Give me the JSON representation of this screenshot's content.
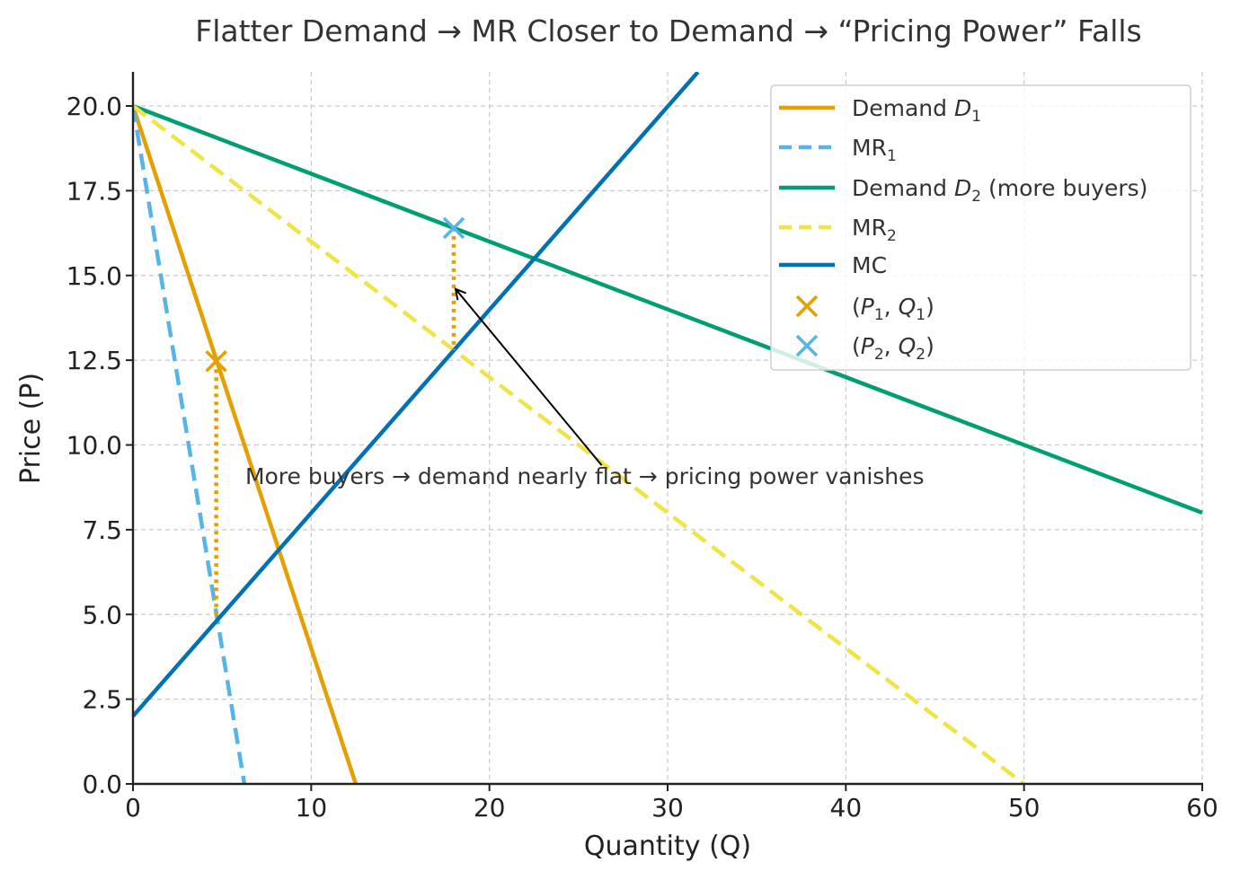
{
  "chart_data": {
    "type": "line",
    "title": "Flatter Demand → MR Closer to Demand → “Pricing Power” Falls",
    "xlabel": "Quantity (Q)",
    "ylabel": "Price (P)",
    "xlim": [
      0,
      60
    ],
    "ylim": [
      0,
      21
    ],
    "xticks": [
      0,
      10,
      20,
      30,
      40,
      50,
      60
    ],
    "xtick_labels": [
      "0",
      "10",
      "20",
      "30",
      "40",
      "50",
      "60"
    ],
    "yticks": [
      0,
      2.5,
      5,
      7.5,
      10,
      12.5,
      15,
      17.5,
      20
    ],
    "ytick_labels": [
      "0.0",
      "2.5",
      "5.0",
      "7.5",
      "10.0",
      "12.5",
      "15.0",
      "17.5",
      "20.0"
    ],
    "grid": true,
    "legend_position": "top-right",
    "series": [
      {
        "name": "Demand D1",
        "label_main": "Demand ",
        "label_var": "D",
        "label_sub": "1",
        "label_tail": "",
        "x": [
          0,
          12.5
        ],
        "y": [
          20,
          0
        ],
        "color": "#E69F00",
        "style": "solid"
      },
      {
        "name": "MR1",
        "label_main": "MR",
        "label_var": "",
        "label_sub": "1",
        "label_tail": "",
        "x": [
          0,
          6.25
        ],
        "y": [
          20,
          0
        ],
        "color": "#56B4E9",
        "style": "dashed"
      },
      {
        "name": "Demand D2 (more buyers)",
        "label_main": "Demand ",
        "label_var": "D",
        "label_sub": "2",
        "label_tail": " (more buyers)",
        "x": [
          0,
          60
        ],
        "y": [
          20,
          8
        ],
        "color": "#009E73",
        "style": "solid"
      },
      {
        "name": "MR2",
        "label_main": "MR",
        "label_var": "",
        "label_sub": "2",
        "label_tail": "",
        "x": [
          0,
          50
        ],
        "y": [
          20,
          0
        ],
        "color": "#F0E442",
        "style": "dashed"
      },
      {
        "name": "MC",
        "label_main": "MC",
        "label_var": "",
        "label_sub": "",
        "label_tail": "",
        "x": [
          0,
          31.7
        ],
        "y": [
          2,
          21
        ],
        "color": "#0072B2",
        "style": "solid"
      }
    ],
    "points": [
      {
        "name": "(P1, Q1)",
        "x": 4.67,
        "y": 12.47,
        "mr_y": 4.93,
        "color": "#E69F00",
        "p_sub": "1",
        "q_sub": "1"
      },
      {
        "name": "(P2, Q2)",
        "x": 18.0,
        "y": 16.4,
        "mr_y": 12.8,
        "color": "#56B4E9",
        "p_sub": "2",
        "q_sub": "2"
      }
    ],
    "gap_line_color": "#E69F00",
    "annotation": {
      "text": "More buyers → demand nearly flat → pricing power vanishes",
      "text_x": 6.3,
      "text_y": 8.85,
      "arrow_from": [
        26.3,
        9.4
      ],
      "arrow_to": [
        18.1,
        14.6
      ]
    }
  }
}
